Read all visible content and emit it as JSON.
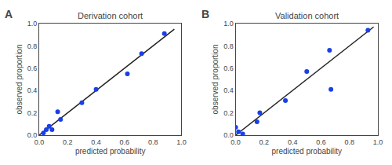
{
  "chart_data": [
    {
      "type": "scatter",
      "title": "Derivation cohort",
      "annotation": "A",
      "xlabel": "predicted probability",
      "ylabel": "observed proportion",
      "series": [
        {
          "type": "line",
          "color": "#222222",
          "x": [
            0.0,
            0.95
          ],
          "values": [
            0.0,
            0.95
          ]
        },
        {
          "type": "scatter",
          "color": "#1a3fe8",
          "x": [
            0.03,
            0.05,
            0.07,
            0.09,
            0.13,
            0.15,
            0.3,
            0.4,
            0.62,
            0.72,
            0.88
          ],
          "values": [
            0.02,
            0.05,
            0.08,
            0.05,
            0.21,
            0.14,
            0.29,
            0.41,
            0.55,
            0.73,
            0.91
          ]
        }
      ],
      "xlim": [
        0.0,
        1.0
      ],
      "ylim": [
        0.0,
        1.0
      ],
      "xticks": [
        {
          "value": 0.0,
          "label": "0.0"
        },
        0.2,
        0.4,
        0.6,
        0.8,
        {
          "value": 1.0,
          "label": "1.0"
        }
      ],
      "yticks": [
        {
          "value": 0.0,
          "label": "0.0"
        },
        0.2,
        0.4,
        0.6,
        0.8,
        {
          "value": 1.0,
          "label": "1.0"
        }
      ],
      "grid": false
    },
    {
      "type": "scatter",
      "title": "Validation cohort",
      "annotation": "B",
      "xlabel": "predicted probability",
      "ylabel": "observed proportion",
      "series": [
        {
          "type": "line",
          "color": "#222222",
          "x": [
            0.0,
            0.97
          ],
          "values": [
            0.0,
            0.97
          ]
        },
        {
          "type": "scatter",
          "color": "#1a3fe8",
          "x": [
            0.0,
            0.02,
            0.05,
            0.15,
            0.17,
            0.35,
            0.5,
            0.66,
            0.67,
            0.93
          ],
          "values": [
            0.07,
            0.03,
            0.01,
            0.12,
            0.2,
            0.31,
            0.57,
            0.76,
            0.41,
            0.94
          ]
        }
      ],
      "xlim": [
        0.0,
        1.0
      ],
      "ylim": [
        0.0,
        1.0
      ],
      "xticks": [
        {
          "value": 0.0,
          "label": "0.0"
        },
        0.2,
        0.4,
        0.6,
        0.8,
        {
          "value": 1.0,
          "label": "1.0"
        }
      ],
      "yticks": [
        {
          "value": 0.0,
          "label": "0.0"
        },
        0.2,
        0.4,
        0.6,
        0.8,
        {
          "value": 1.0,
          "label": "1.0"
        }
      ],
      "grid": false
    }
  ]
}
